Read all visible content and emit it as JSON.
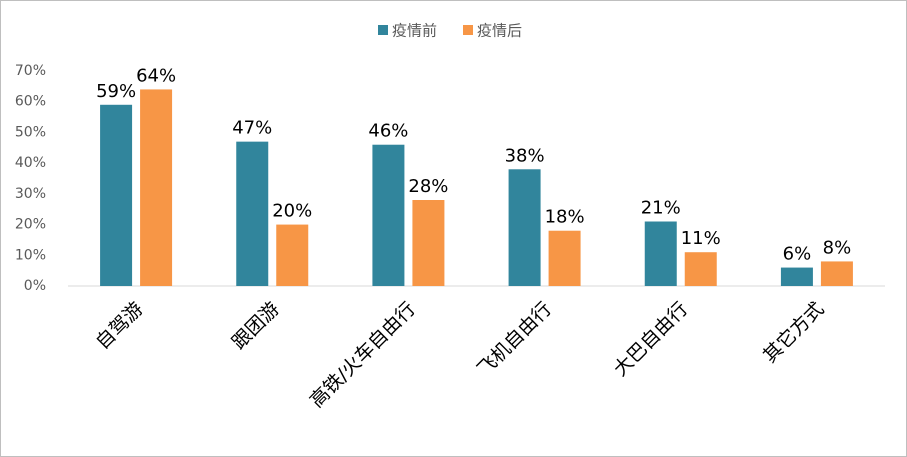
{
  "chart_data": {
    "type": "bar",
    "categories": [
      "自驾游",
      "跟团游",
      "高铁/火车自由行",
      "飞机自由行",
      "大巴自由行",
      "其它方式"
    ],
    "series": [
      {
        "name": "疫情前",
        "color": "#31859c",
        "values": [
          59,
          47,
          46,
          38,
          21,
          6
        ],
        "value_labels": [
          "59%",
          "47%",
          "46%",
          "38%",
          "21%",
          "6%"
        ]
      },
      {
        "name": "疫情后",
        "color": "#f79646",
        "values": [
          64,
          20,
          28,
          18,
          11,
          8
        ],
        "value_labels": [
          "64%",
          "20%",
          "28%",
          "18%",
          "11%",
          "8%"
        ]
      }
    ],
    "ylim": [
      0,
      70
    ],
    "yticks": [
      {
        "value": 0,
        "label": "0%"
      },
      {
        "value": 10,
        "label": "10%"
      },
      {
        "value": 20,
        "label": "20%"
      },
      {
        "value": 30,
        "label": "30%"
      },
      {
        "value": 40,
        "label": "40%"
      },
      {
        "value": 50,
        "label": "50%"
      },
      {
        "value": 60,
        "label": "60%"
      },
      {
        "value": 70,
        "label": "70%"
      }
    ],
    "grid": false,
    "legend": "top"
  }
}
